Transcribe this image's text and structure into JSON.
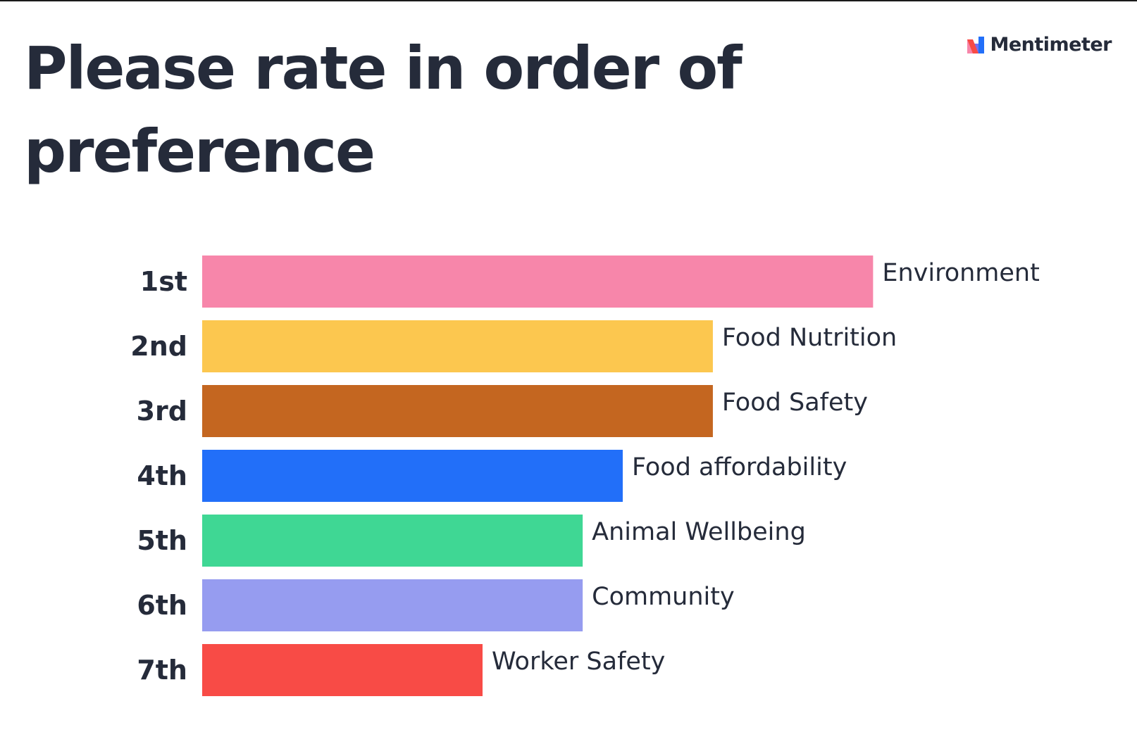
{
  "title": "Please rate in order of preference",
  "brand": {
    "name": "Mentimeter",
    "logo_icon": "mentimeter-logo-icon"
  },
  "chart_data": {
    "type": "bar",
    "orientation": "horizontal",
    "title": "Please rate in order of preference",
    "ranks": [
      "1st",
      "2nd",
      "3rd",
      "4th",
      "5th",
      "6th",
      "7th"
    ],
    "categories": [
      "Environment",
      "Food Nutrition",
      "Food Safety",
      "Food affordability",
      "Animal Wellbeing",
      "Community",
      "Worker Safety"
    ],
    "values": [
      6.7,
      5.1,
      5.1,
      4.2,
      3.8,
      3.8,
      2.8
    ],
    "colors": [
      "#f786aa",
      "#fcc74f",
      "#c46620",
      "#226ff9",
      "#3fd794",
      "#969cf0",
      "#f84b46"
    ],
    "xlim": [
      0,
      7
    ],
    "xlabel": "",
    "ylabel": "",
    "grid": false,
    "legend": "none"
  }
}
